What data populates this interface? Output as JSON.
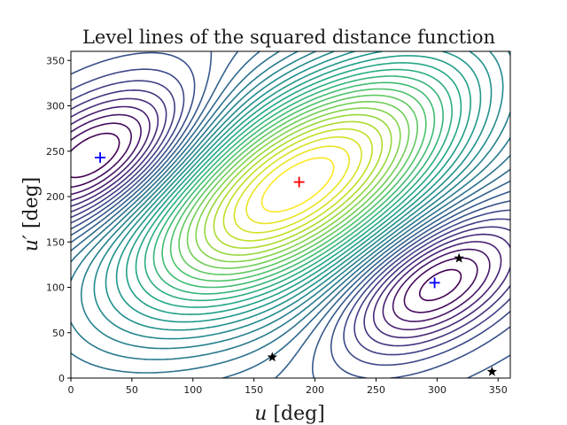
{
  "chart_data": {
    "type": "contour",
    "title": "Level lines of the squared distance function",
    "xlabel_var": "u",
    "xlabel_unit": "[deg]",
    "ylabel_var": "u′",
    "ylabel_unit": "[deg]",
    "xlim": [
      0,
      360
    ],
    "ylim": [
      0,
      360
    ],
    "xticks": [
      0,
      50,
      100,
      150,
      200,
      250,
      300,
      350
    ],
    "yticks": [
      0,
      50,
      100,
      150,
      200,
      250,
      300,
      350
    ],
    "colormap": "viridis",
    "maximum": {
      "x": 187,
      "y": 216,
      "marker": "plus",
      "color": "#ff0000"
    },
    "minima": [
      {
        "x": 24,
        "y": 243,
        "marker": "plus",
        "color": "#0000ff"
      },
      {
        "x": 298,
        "y": 105,
        "marker": "plus",
        "color": "#0000ff"
      }
    ],
    "saddles": [
      {
        "x": 165,
        "y": 23,
        "marker": "star",
        "color": "#000000"
      },
      {
        "x": 318,
        "y": 132,
        "marker": "star",
        "color": "#000000"
      },
      {
        "x": 345,
        "y": 7,
        "marker": "star",
        "color": "#000000"
      }
    ]
  }
}
